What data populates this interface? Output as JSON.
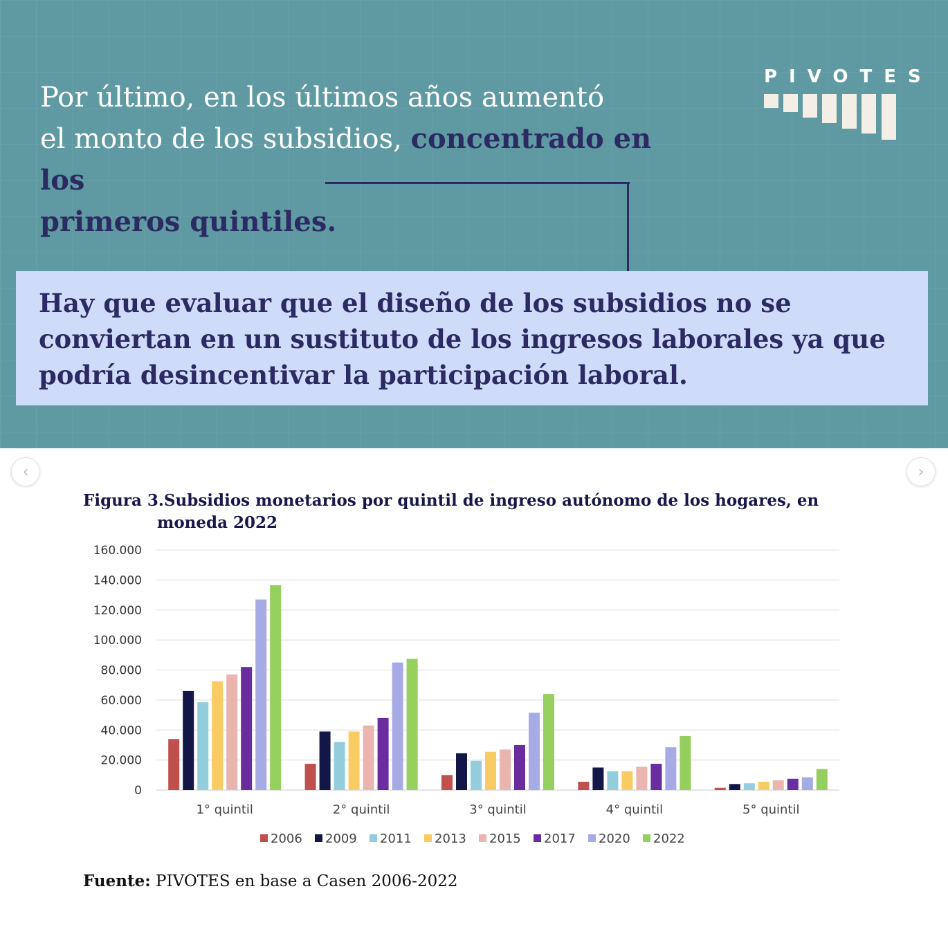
{
  "header": {
    "line1": "Por último, en los últimos años aumentó",
    "line2": "el monto de los subsidios,",
    "line2_highlight": "concentrado en los",
    "line3_highlight": "primeros quintiles."
  },
  "logo": {
    "text": "PIVOTES"
  },
  "callout": {
    "text": "Hay que evaluar que el diseño de los subsidios no se conviertan en un sustituto de los ingresos laborales ya que podría desincentivar la participación laboral."
  },
  "figure": {
    "title_line1": "Figura 3.Subsidios monetarios por quintil de ingreso autónomo de los hogares, en",
    "title_line2": "moneda 2022",
    "source_bold": "Fuente:",
    "source_rest": " PIVOTES en base a Casen 2006-2022"
  },
  "chart_data": {
    "type": "bar",
    "categories": [
      "1° quintil",
      "2° quintil",
      "3° quintil",
      "4° quintil",
      "5° quintil"
    ],
    "ylim": [
      0,
      160000
    ],
    "yticks": [
      "0",
      "20.000",
      "40.000",
      "60.000",
      "80.000",
      "100.000",
      "120.000",
      "140.000",
      "160.000"
    ],
    "grid": true,
    "legend_position": "bottom",
    "series": [
      {
        "name": "2006",
        "color": "#c0504d",
        "values": [
          34000,
          17500,
          10000,
          5500,
          1500
        ]
      },
      {
        "name": "2009",
        "color": "#121747",
        "values": [
          66000,
          39000,
          24500,
          15000,
          4000
        ]
      },
      {
        "name": "2011",
        "color": "#92cddc",
        "values": [
          58500,
          32000,
          19500,
          12500,
          4500
        ]
      },
      {
        "name": "2013",
        "color": "#f8cb63",
        "values": [
          72500,
          39000,
          25500,
          12500,
          5500
        ]
      },
      {
        "name": "2015",
        "color": "#e9b5ae",
        "values": [
          77000,
          43000,
          27000,
          15500,
          6500
        ]
      },
      {
        "name": "2017",
        "color": "#6a2d9f",
        "values": [
          82000,
          48000,
          30000,
          17500,
          7500
        ]
      },
      {
        "name": "2020",
        "color": "#a6abe6",
        "values": [
          127000,
          85000,
          51500,
          28500,
          8500
        ]
      },
      {
        "name": "2022",
        "color": "#95cf5d",
        "values": [
          136500,
          87500,
          64000,
          36000,
          14000
        ]
      }
    ]
  }
}
